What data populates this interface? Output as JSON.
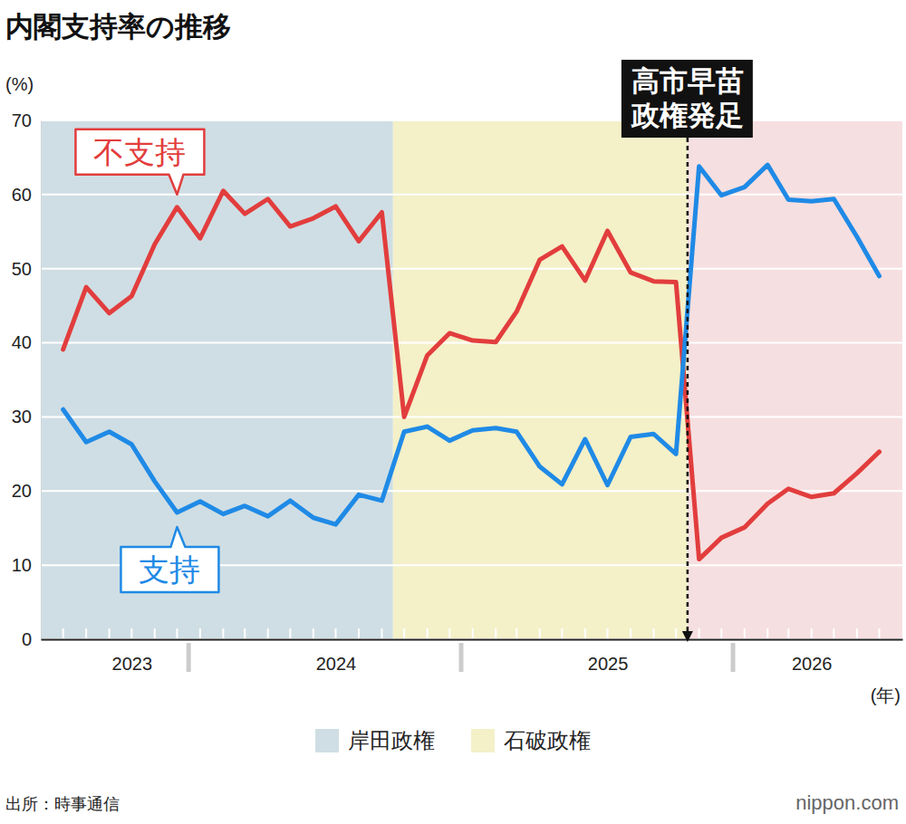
{
  "chart_data": {
    "type": "line",
    "title": "内閣支持率の推移",
    "y_label": "(%)",
    "x_label": "(年)",
    "source": "出所：時事通信",
    "credit": "nippon.com",
    "x": [
      "2023-07",
      "2023-08",
      "2023-09",
      "2023-10",
      "2023-11",
      "2023-12",
      "2024-01",
      "2024-02",
      "2024-03",
      "2024-04",
      "2024-05",
      "2024-06",
      "2024-07",
      "2024-08",
      "2024-09",
      "2024-10",
      "2024-11",
      "2024-12",
      "2025-01",
      "2025-02",
      "2025-03",
      "2025-04",
      "2025-05",
      "2025-06",
      "2025-07",
      "2025-08",
      "2025-09",
      "2025-10",
      "2025-11",
      "2025-12",
      "2026-01",
      "2026-02",
      "2026-03",
      "2026-04",
      "2026-05",
      "2026-06",
      "2026-07"
    ],
    "xlim": [
      "2023-06",
      "2026-08"
    ],
    "xticks": [
      {
        "value": "2023-10",
        "label": "2023"
      },
      {
        "value": "2024-07",
        "label": "2024"
      },
      {
        "value": "2025-07",
        "label": "2025"
      },
      {
        "value": "2026-04",
        "label": "2026"
      }
    ],
    "ylim": [
      0,
      70
    ],
    "yticks": [
      0,
      10,
      20,
      30,
      40,
      50,
      60,
      70
    ],
    "grid": true,
    "legend": "bottom",
    "series": [
      {
        "name": "不支持",
        "color": "#e23d3d",
        "values": [
          39.1,
          47.5,
          44.0,
          46.3,
          53.3,
          58.3,
          54.1,
          60.5,
          57.4,
          59.4,
          55.7,
          56.8,
          58.4,
          53.7,
          57.6,
          30.0,
          38.3,
          41.3,
          40.3,
          40.1,
          44.2,
          51.2,
          53.0,
          48.4,
          55.1,
          49.5,
          48.3,
          48.2,
          10.8,
          13.7,
          15.1,
          18.3,
          20.3,
          19.2,
          19.7,
          22.4,
          25.3
        ]
      },
      {
        "name": "支持",
        "color": "#1f8ae6",
        "values": [
          31.0,
          26.6,
          28.0,
          26.3,
          21.3,
          17.1,
          18.6,
          16.9,
          18.0,
          16.6,
          18.7,
          16.4,
          15.5,
          19.5,
          18.7,
          28.0,
          28.7,
          26.8,
          28.2,
          28.5,
          28.0,
          23.3,
          20.9,
          27.0,
          20.8,
          27.3,
          27.7,
          25.0,
          63.8,
          59.9,
          61.0,
          64.0,
          59.3,
          59.1,
          59.4,
          54.3,
          49.0
        ]
      }
    ],
    "periods": [
      {
        "name": "岸田政権",
        "color": "#cfdee4",
        "start": "2023-07",
        "end": "2024-09"
      },
      {
        "name": "石破政権",
        "color": "#f4f0c8",
        "start": "2024-10",
        "end": "2025-10"
      },
      {
        "label": "高市早苗政権発足",
        "color": "#f6dfe0",
        "start": "2025-11",
        "end": "2026-07"
      }
    ]
  }
}
